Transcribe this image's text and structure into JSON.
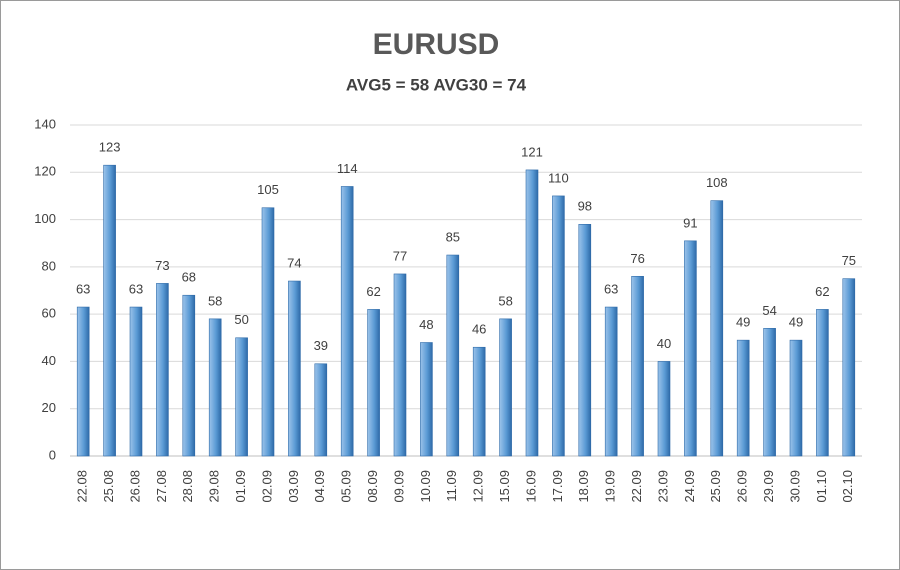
{
  "chart_data": {
    "type": "bar",
    "title": "EURUSD",
    "subtitle": "AVG5 = 58 AVG30 = 74",
    "categories": [
      "22.08",
      "25.08",
      "26.08",
      "27.08",
      "28.08",
      "29.08",
      "01.09",
      "02.09",
      "03.09",
      "04.09",
      "05.09",
      "08.09",
      "09.09",
      "10.09",
      "11.09",
      "12.09",
      "15.09",
      "16.09",
      "17.09",
      "18.09",
      "19.09",
      "22.09",
      "23.09",
      "24.09",
      "25.09",
      "26.09",
      "29.09",
      "30.09",
      "01.10",
      "02.10"
    ],
    "values": [
      63,
      123,
      63,
      73,
      68,
      58,
      50,
      105,
      74,
      39,
      114,
      62,
      77,
      48,
      85,
      46,
      58,
      121,
      110,
      98,
      63,
      76,
      40,
      91,
      108,
      49,
      54,
      49,
      62,
      75
    ],
    "color": "#5b9bd5",
    "ylim": [
      0,
      140
    ],
    "yticks": [
      0,
      20,
      40,
      60,
      80,
      100,
      120,
      140
    ],
    "grid": true
  }
}
